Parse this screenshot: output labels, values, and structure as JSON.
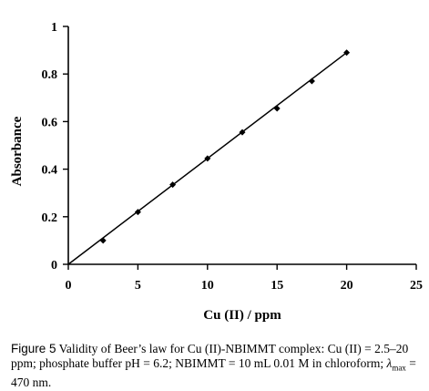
{
  "chart_data": {
    "type": "scatter",
    "xlabel": "Cu (II) / ppm",
    "ylabel": "Absorbance",
    "xlim": [
      0,
      25
    ],
    "ylim": [
      0,
      1
    ],
    "x_ticks": [
      "0",
      "5",
      "10",
      "15",
      "20",
      "25"
    ],
    "y_ticks": [
      "0",
      "0.2",
      "0.4",
      "0.6",
      "0.8",
      "1"
    ],
    "grid": false,
    "legend": "none",
    "marker": "diamond",
    "trendline": {
      "from": [
        0,
        0
      ],
      "to": [
        20,
        0.89
      ]
    },
    "points": [
      {
        "x": 2.5,
        "y": 0.1
      },
      {
        "x": 5.0,
        "y": 0.22
      },
      {
        "x": 7.5,
        "y": 0.335
      },
      {
        "x": 10.0,
        "y": 0.445
      },
      {
        "x": 12.5,
        "y": 0.555
      },
      {
        "x": 15.0,
        "y": 0.655
      },
      {
        "x": 17.5,
        "y": 0.77
      },
      {
        "x": 20.0,
        "y": 0.89
      }
    ]
  },
  "caption": {
    "lead": "Figure 5",
    "text": "Validity of Beer’s law for Cu (II)-NBIMMT complex: Cu (II) = 2.5–20 ppm; phosphate buffer pH = 6.2; NBIMMT = 10 mL 0.01 M in chloroform; ",
    "lambda": "λ",
    "lambda_sub": "max",
    "lambda_value": " = 470 nm."
  }
}
